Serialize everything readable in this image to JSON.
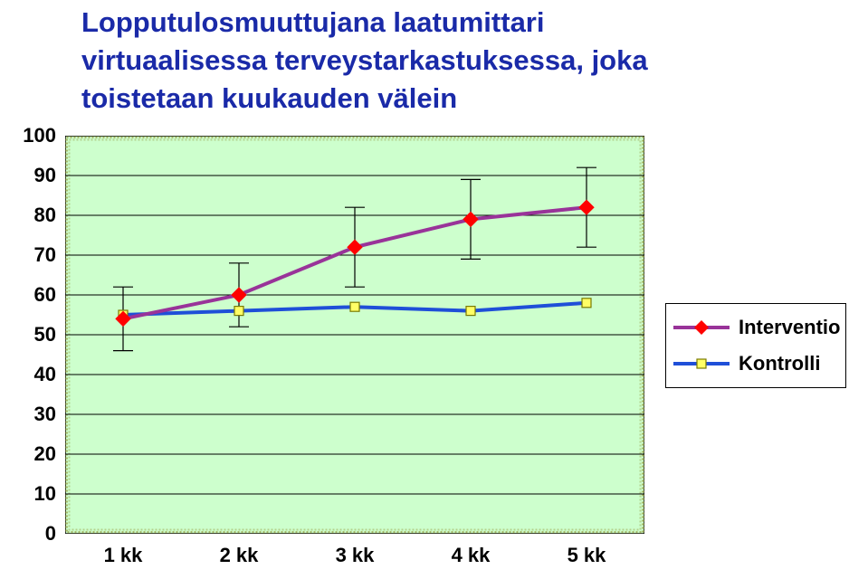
{
  "title": {
    "line1": "Lopputulosmuuttujana laatumittari",
    "line2": "virtuaalisessa terveystarkastuksessa, joka",
    "line3": "toistetaan kuukauden välein",
    "color": "#1a2aa8",
    "fontsize": 31
  },
  "chart": {
    "type": "line-with-errorbars",
    "background_color": "#cdffcd",
    "border_color": "#000000",
    "gridline_color": "#000000",
    "inner_hatch_border_color": "#8c8c2c",
    "categories": [
      "1 kk",
      "2 kk",
      "3 kk",
      "4 kk",
      "5 kk"
    ],
    "ylim": [
      0,
      100
    ],
    "ytick_step": 10,
    "yticks": [
      0,
      10,
      20,
      30,
      40,
      50,
      60,
      70,
      80,
      90,
      100
    ],
    "label_fontsize": 22,
    "label_color": "#000000",
    "series": {
      "interventio": {
        "label": "Interventio",
        "color_line": "#993399",
        "color_marker_fill": "#ff0000",
        "marker": "diamond",
        "marker_size": 16,
        "line_width": 4,
        "values": [
          54,
          60,
          72,
          79,
          82
        ],
        "err_low": [
          8,
          8,
          10,
          10,
          10
        ],
        "err_high": [
          8,
          8,
          10,
          10,
          10
        ]
      },
      "kontrolli": {
        "label": "Kontrolli",
        "color_line": "#1f4fd8",
        "color_marker_fill": "#ffff66",
        "color_marker_stroke": "#7a7a00",
        "marker": "square",
        "marker_size": 10,
        "line_width": 4,
        "values": [
          55,
          56,
          57,
          56,
          58
        ]
      }
    },
    "legend": {
      "position": "right",
      "border_color": "#000000",
      "background": "#ffffff"
    }
  }
}
